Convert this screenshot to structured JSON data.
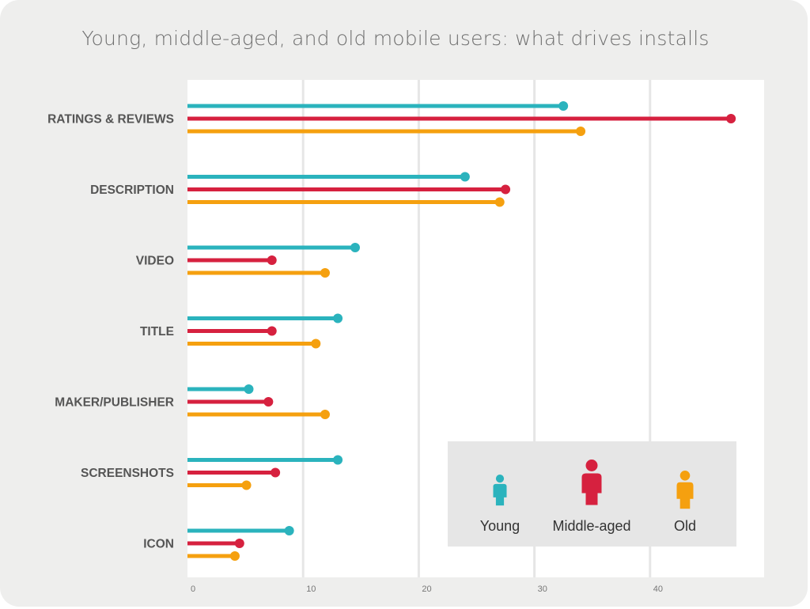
{
  "title": "Young, middle-aged, and old mobile users: what drives installs",
  "colors": {
    "young": "#2bb3bd",
    "middle": "#d6213f",
    "old": "#f5a00f",
    "plot_bg": "#ffffff",
    "grid": "#e6e6e6",
    "legend_bg": "#e6e6e6"
  },
  "chart_data": {
    "type": "bar",
    "title": "Young, middle-aged, and old mobile users: what drives installs",
    "orientation": "horizontal",
    "style": "lollipop",
    "categories": [
      "RATINGS & REVIEWS",
      "DESCRIPTION",
      "VIDEO",
      "TITLE",
      "MAKER/PUBLISHER",
      "SCREENSHOTS",
      "ICON"
    ],
    "series": [
      {
        "name": "Young",
        "color": "#2bb3bd",
        "values": [
          32.5,
          24,
          14.5,
          13,
          5.3,
          13,
          8.8
        ]
      },
      {
        "name": "Middle-aged",
        "color": "#d6213f",
        "values": [
          47,
          27.5,
          7.3,
          7.3,
          7,
          7.6,
          4.5
        ]
      },
      {
        "name": "Old",
        "color": "#f5a00f",
        "values": [
          34,
          27,
          11.9,
          11.1,
          11.9,
          5.1,
          4.1
        ]
      }
    ],
    "xlim": [
      0,
      50
    ],
    "xticks": [
      0,
      10,
      20,
      30,
      40
    ],
    "xtick_labels": [
      "0",
      "10",
      "20",
      "30",
      "40"
    ],
    "grid": true,
    "legend_position": "bottom-right"
  }
}
